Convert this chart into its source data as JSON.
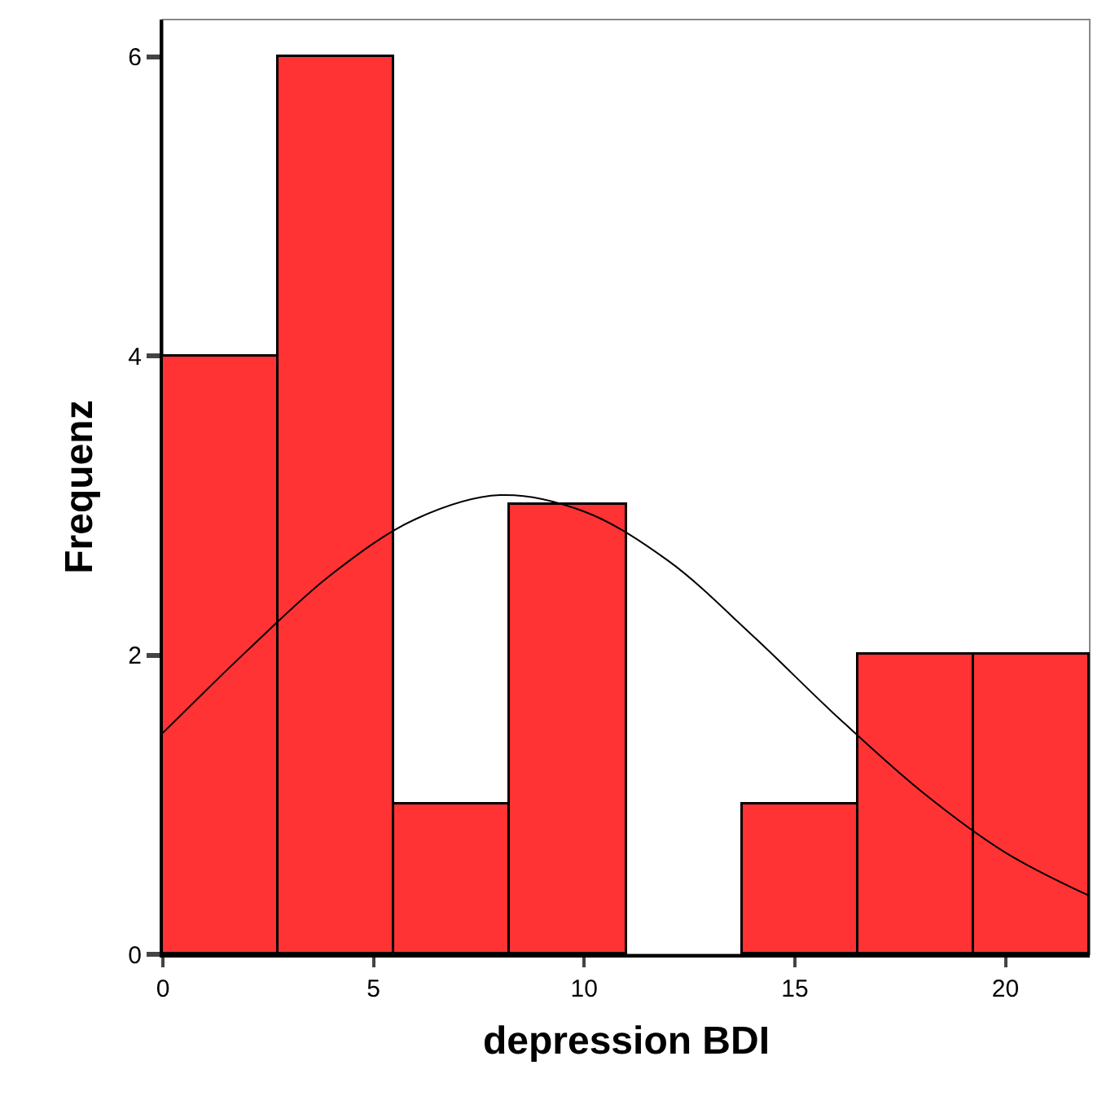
{
  "chart_data": {
    "type": "histogram",
    "xlabel": "depression BDI",
    "ylabel": "Frequenz",
    "bins": [
      0,
      2.75,
      5.5,
      8.25,
      11,
      13.75,
      16.5,
      19.25,
      22
    ],
    "values": [
      4,
      6,
      1,
      3,
      0,
      1,
      2,
      2
    ],
    "color": "#ff3333",
    "series": [
      {
        "type": "line",
        "color": "#000000",
        "x": [
          0,
          2,
          4,
          6,
          8,
          10,
          12,
          14,
          16,
          18,
          20,
          22
        ],
        "values": [
          1.48,
          2.03,
          2.54,
          2.91,
          3.07,
          2.96,
          2.63,
          2.13,
          1.59,
          1.09,
          0.68,
          0.39
        ]
      }
    ],
    "xlim": [
      0,
      22
    ],
    "ylim": [
      0,
      6.25
    ],
    "xticks": [
      0,
      5,
      10,
      15,
      20
    ],
    "yticks": [
      0,
      2,
      4,
      6
    ]
  }
}
